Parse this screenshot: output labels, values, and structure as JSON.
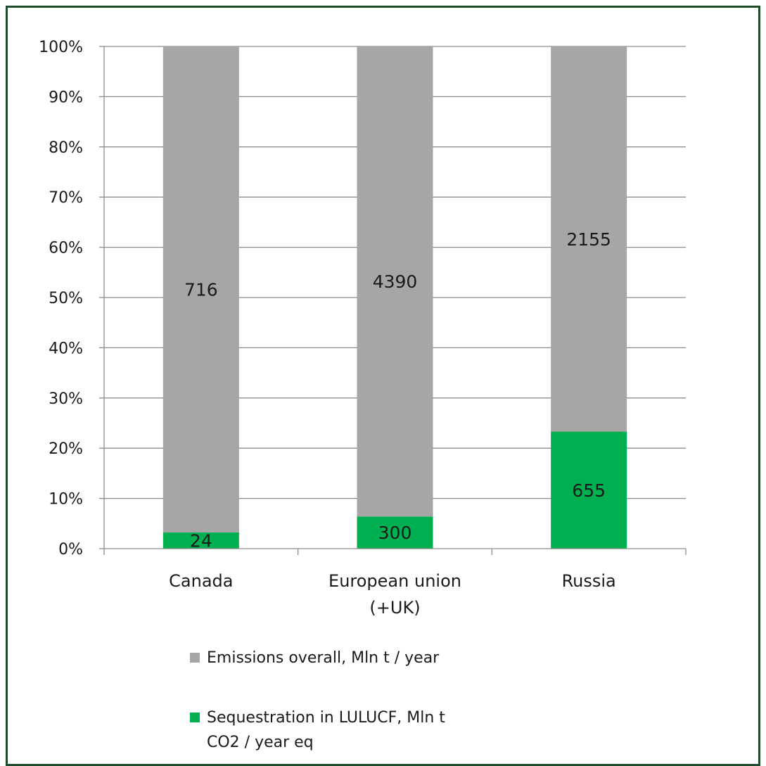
{
  "chart_data": {
    "type": "bar",
    "stacked": true,
    "normalized": true,
    "categories": [
      [
        "Canada"
      ],
      [
        "European union",
        "(+UK)"
      ],
      [
        "Russia"
      ]
    ],
    "series": [
      {
        "name": "Sequestration in LULUCF, Mln t CO2 / year eq",
        "name_lines": [
          "Sequestration in LULUCF, Mln t",
          "CO2 / year eq"
        ],
        "values": [
          24,
          300,
          655
        ],
        "color": "#00b050"
      },
      {
        "name": "Emissions overall, Mln t / year",
        "name_lines": [
          "Emissions overall, Mln t / year"
        ],
        "values": [
          716,
          4390,
          2155
        ],
        "color": "#a6a6a6"
      }
    ],
    "y_ticks": [
      "0%",
      "10%",
      "20%",
      "30%",
      "40%",
      "50%",
      "60%",
      "70%",
      "80%",
      "90%",
      "100%"
    ],
    "ylim": [
      0,
      100
    ],
    "grid": true,
    "legend_position": "bottom",
    "legend_order": [
      1,
      0
    ]
  },
  "colors": {
    "frame": "#1e4d2b",
    "grid": "#8c8c8c",
    "text": "#1a1a1a"
  }
}
